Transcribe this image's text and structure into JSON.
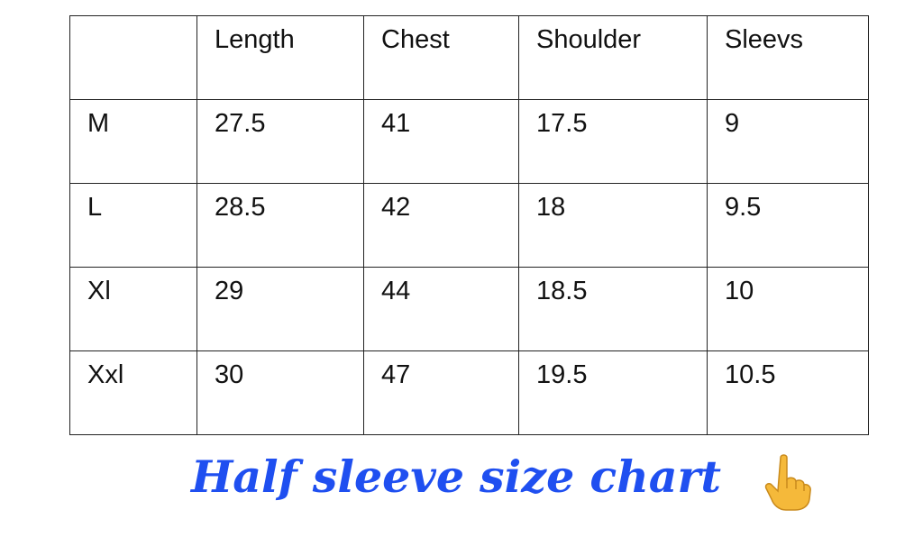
{
  "table": {
    "headers": [
      "",
      "Length",
      "Chest",
      "Shoulder",
      "Sleevs"
    ],
    "rows": [
      [
        "M",
        "27.5",
        "41",
        "17.5",
        "9"
      ],
      [
        "L",
        "28.5",
        "42",
        "18",
        "9.5"
      ],
      [
        "Xl",
        "29",
        "44",
        "18.5",
        "10"
      ],
      [
        "Xxl",
        "30",
        "47",
        "19.5",
        "10.5"
      ]
    ]
  },
  "caption": "Half sleeve size chart",
  "emoji": "pointing-up-hand-icon",
  "colors": {
    "caption": "#1f4ff0",
    "emoji": "#f5b93a"
  }
}
